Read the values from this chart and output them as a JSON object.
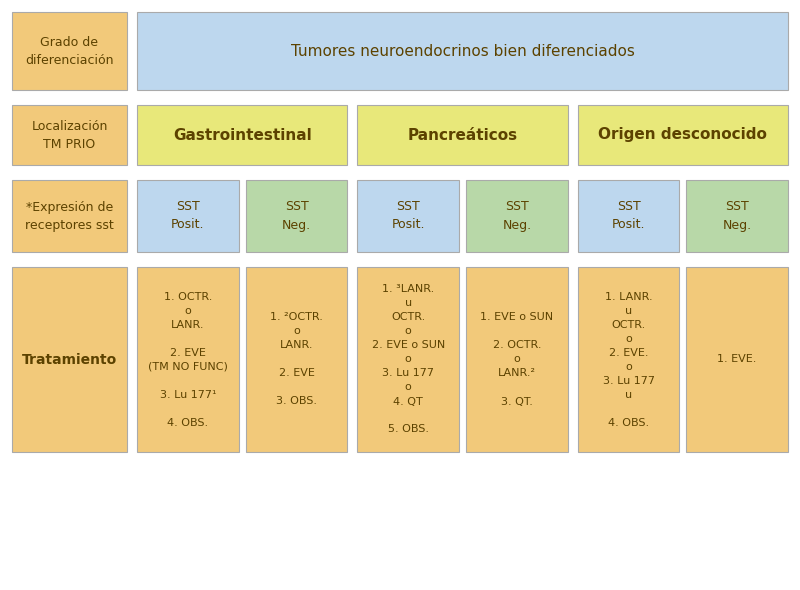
{
  "bg_color": "#ffffff",
  "border_color": "#aaaaaa",
  "colors": {
    "orange": "#F2C97A",
    "blue": "#BDD7EE",
    "yellow": "#E8E87A",
    "green": "#B8D8A8"
  },
  "row1": {
    "left_label": "Grado de\ndiferenciación",
    "right_text": "Tumores neuroendocrinos bien diferenciados"
  },
  "row2": {
    "left_label": "Localización\nTM PRIO",
    "cols": [
      "Gastrointestinal",
      "Pancreáticos",
      "Origen desconocido"
    ]
  },
  "row3": {
    "left_label": "*Expresión de\nreceptores sst",
    "cols": [
      "SST\nPosit.",
      "SST\nNeg.",
      "SST\nPosit.",
      "SST\nNeg.",
      "SST\nPosit.",
      "SST\nNeg."
    ]
  },
  "row4": {
    "left_label": "Tratamiento",
    "cols": [
      "1. OCTR.\no\nLANR.\n\n2. EVE\n(TM NO FUNC)\n\n3. Lu 177¹\n\n4. OBS.",
      "1. ²OCTR.\no\nLANR.\n\n2. EVE\n\n3. OBS.",
      "1. ³LANR.\nu\nOCTR.\no\n2. EVE o SUN\no\n3. Lu 177\no\n4. QT\n\n5. OBS.",
      "1. EVE o SUN\n\n2. OCTR.\no\nLANR.²\n\n3. QT.",
      "1. LANR.\nu\nOCTR.\no\n2. EVE.\no\n3. Lu 177\nu\n\n4. OBS.",
      "1. EVE."
    ]
  }
}
